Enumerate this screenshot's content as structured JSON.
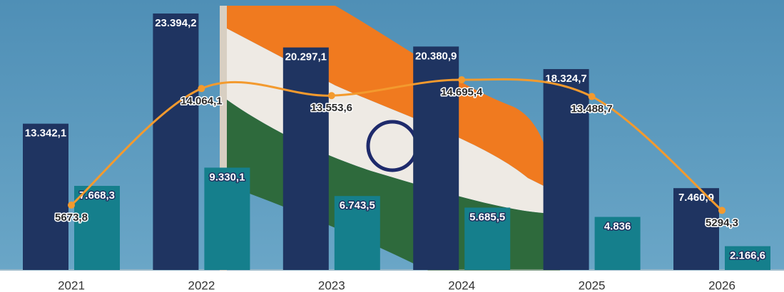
{
  "chart_data": {
    "type": "bar",
    "categories": [
      "2021",
      "2022",
      "2023",
      "2024",
      "2025",
      "2026"
    ],
    "series": [
      {
        "type": "bar",
        "color": "#1f3461",
        "values": [
          13342.1,
          23394.2,
          20297.1,
          20380.9,
          18324.7,
          7460.9
        ],
        "value_labels": [
          "13.342,1",
          "23.394,2",
          "20.297,1",
          "20.380,9",
          "18.324,7",
          "7.460,9"
        ]
      },
      {
        "type": "bar",
        "color": "#157f8c",
        "values": [
          7668.3,
          9330.1,
          6743.5,
          5685.5,
          4836,
          2166.6
        ],
        "value_labels": [
          "7.668,3",
          "9.330,1",
          "6.743,5",
          "5.685,5",
          "4.836",
          "2.166,6"
        ]
      },
      {
        "type": "line",
        "color": "#f39a2e",
        "values": [
          5673.8,
          14064.1,
          13553.6,
          14695.4,
          13488.7,
          5294.3
        ],
        "value_labels": [
          "5673,8",
          "14.064,1",
          "13.553,6",
          "14.695,4",
          "13.488,7",
          "5294,3"
        ]
      }
    ]
  }
}
